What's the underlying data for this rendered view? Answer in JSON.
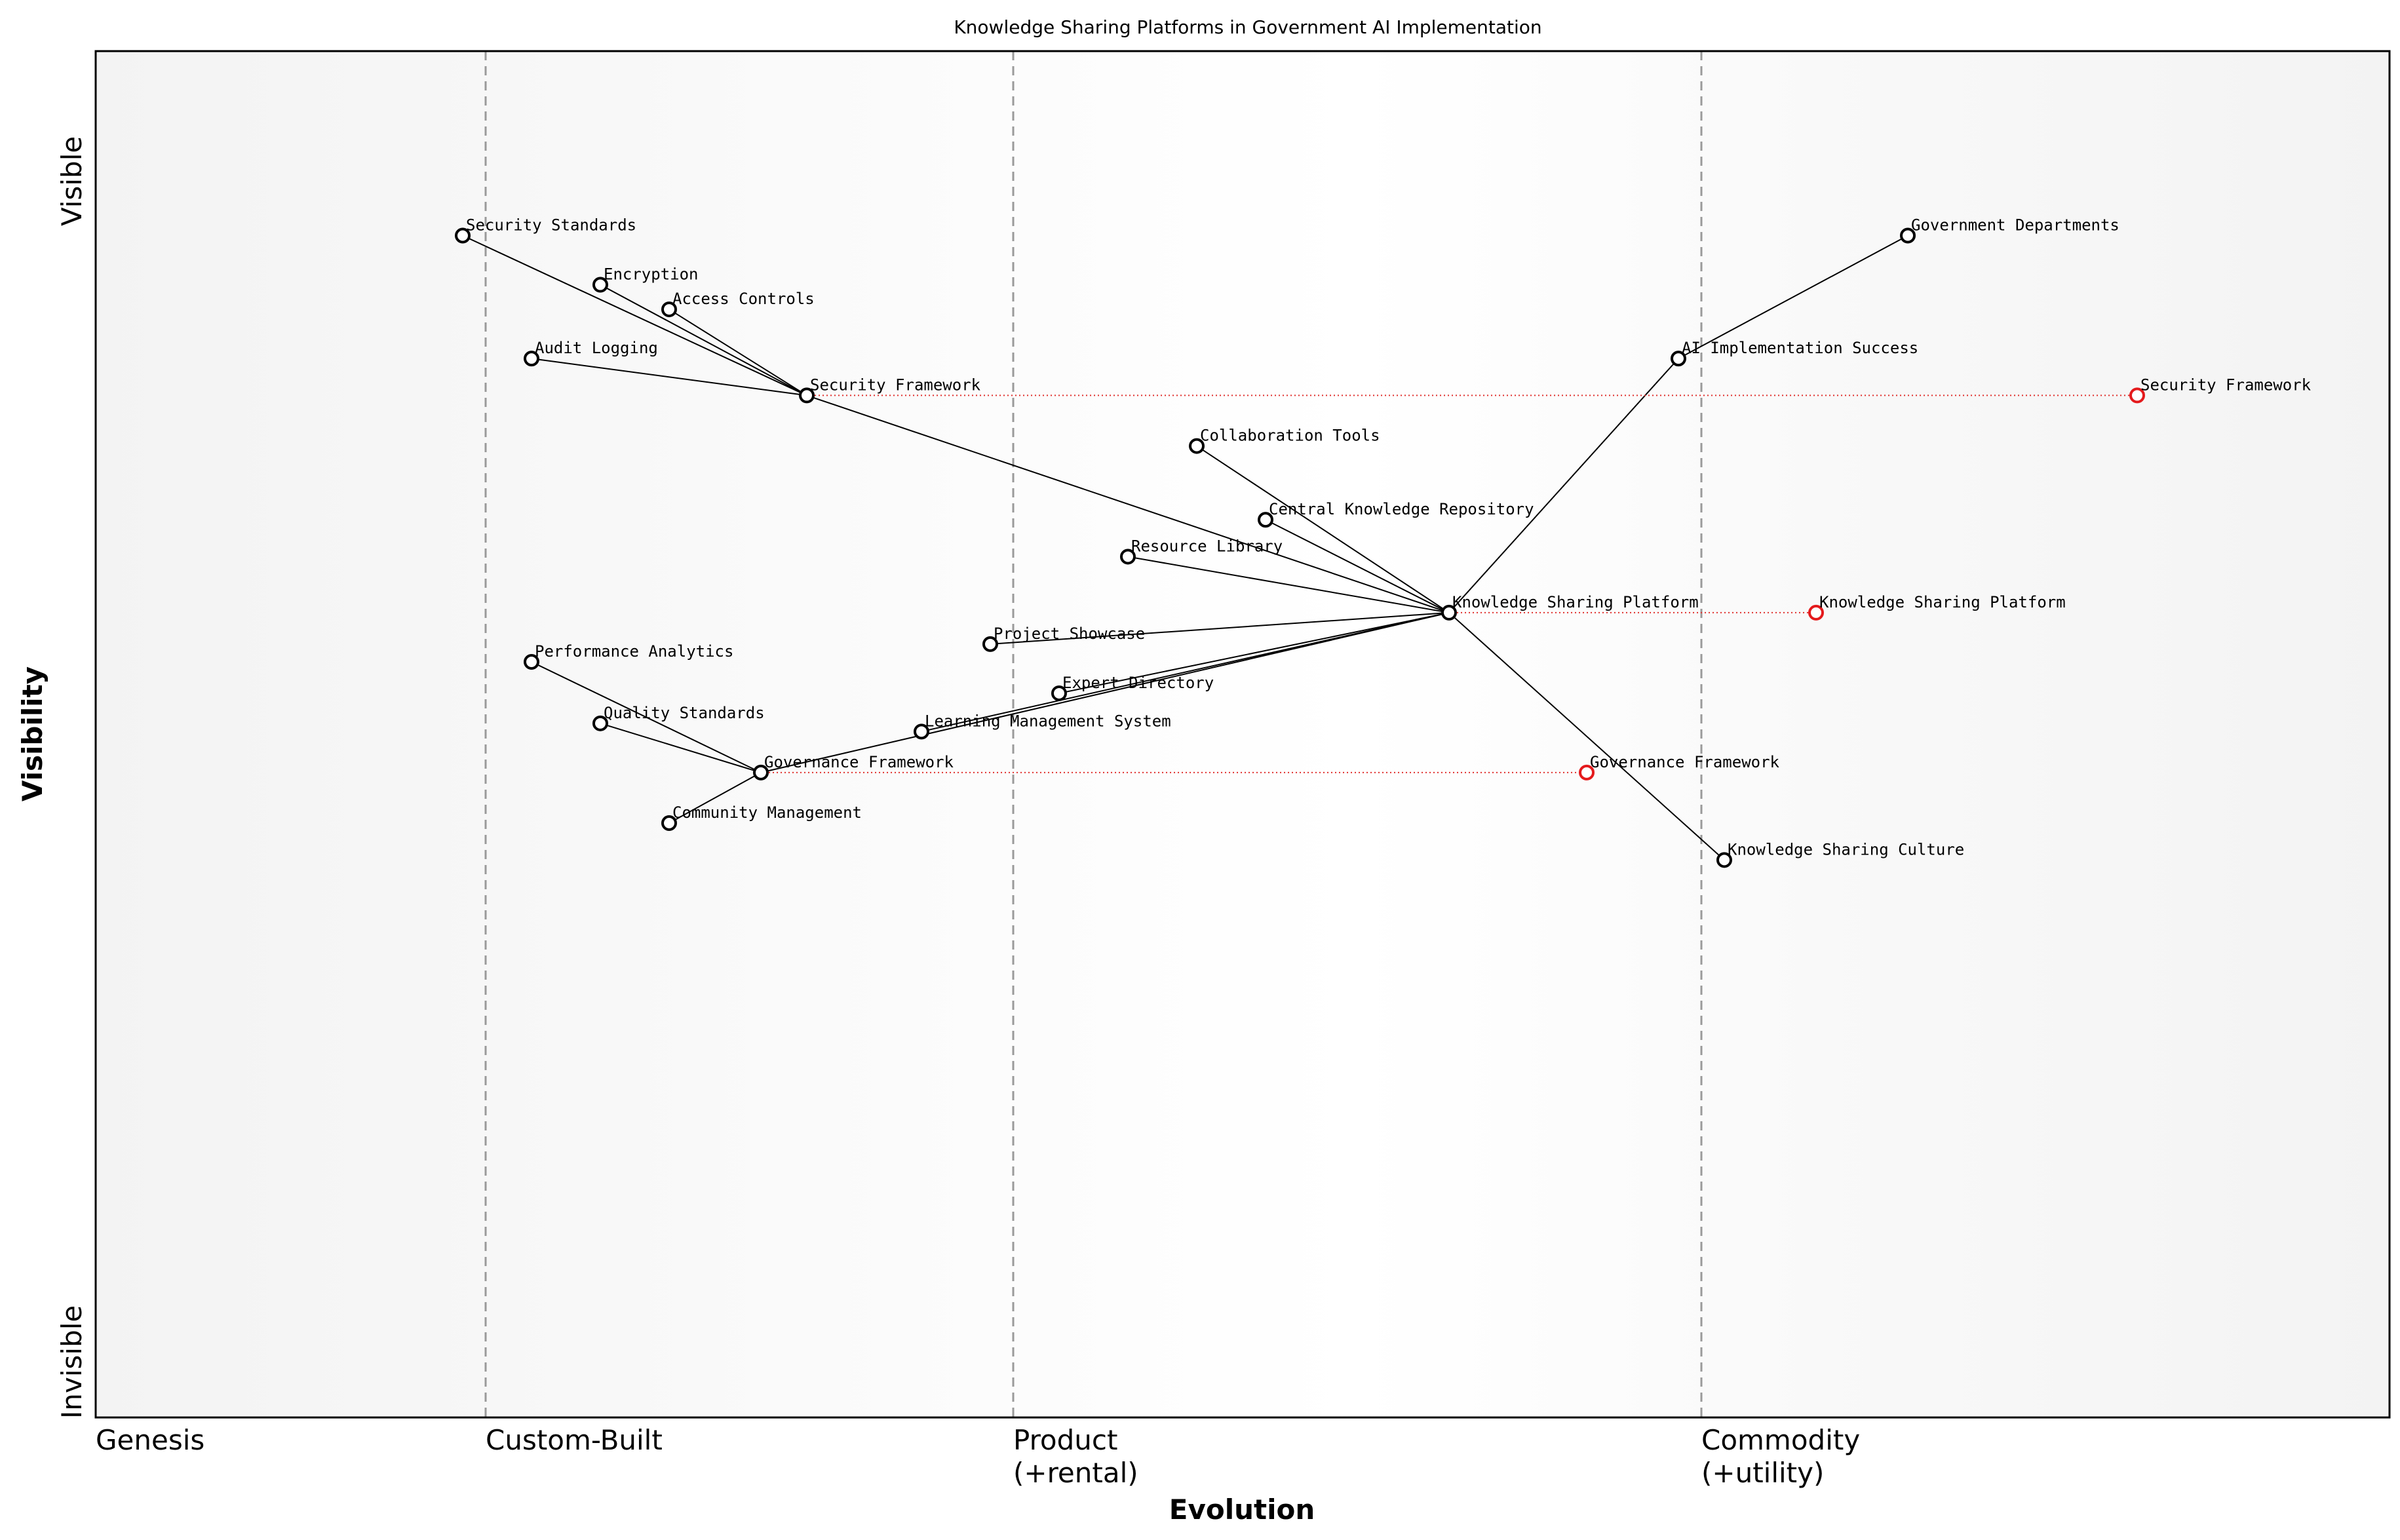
{
  "title": "Knowledge Sharing Platforms in Government AI Implementation",
  "axes": {
    "x_title": "Evolution",
    "y_title": "Visibility",
    "y_top": "Visible",
    "y_bottom": "Invisible",
    "stages": [
      {
        "id": "genesis",
        "line1": "Genesis",
        "line2": "",
        "start": 0.0
      },
      {
        "id": "custom",
        "line1": "Custom-Built",
        "line2": "",
        "start": 0.17
      },
      {
        "id": "product",
        "line1": "Product",
        "line2": "(+rental)",
        "start": 0.4
      },
      {
        "id": "commodity",
        "line1": "Commodity",
        "line2": "(+utility)",
        "start": 0.7
      }
    ]
  },
  "components": [
    {
      "id": "security-standards",
      "name": "Security Standards",
      "evolution": 0.16,
      "visibility": 0.865
    },
    {
      "id": "encryption",
      "name": "Encryption",
      "evolution": 0.22,
      "visibility": 0.829
    },
    {
      "id": "access-controls",
      "name": "Access Controls",
      "evolution": 0.25,
      "visibility": 0.811
    },
    {
      "id": "audit-logging",
      "name": "Audit Logging",
      "evolution": 0.19,
      "visibility": 0.775
    },
    {
      "id": "security-framework",
      "name": "Security Framework",
      "evolution": 0.31,
      "visibility": 0.748
    },
    {
      "id": "government-departments",
      "name": "Government Departments",
      "evolution": 0.79,
      "visibility": 0.865
    },
    {
      "id": "ai-implementation-success",
      "name": "AI Implementation Success",
      "evolution": 0.69,
      "visibility": 0.775
    },
    {
      "id": "collaboration-tools",
      "name": "Collaboration Tools",
      "evolution": 0.48,
      "visibility": 0.711
    },
    {
      "id": "central-knowledge-repository",
      "name": "Central Knowledge Repository",
      "evolution": 0.51,
      "visibility": 0.657
    },
    {
      "id": "resource-library",
      "name": "Resource Library",
      "evolution": 0.45,
      "visibility": 0.63
    },
    {
      "id": "knowledge-sharing-platform",
      "name": "Knowledge Sharing Platform",
      "evolution": 0.59,
      "visibility": 0.589
    },
    {
      "id": "project-showcase",
      "name": "Project Showcase",
      "evolution": 0.39,
      "visibility": 0.566
    },
    {
      "id": "performance-analytics",
      "name": "Performance Analytics",
      "evolution": 0.19,
      "visibility": 0.553
    },
    {
      "id": "expert-directory",
      "name": "Expert Directory",
      "evolution": 0.42,
      "visibility": 0.53
    },
    {
      "id": "quality-standards",
      "name": "Quality Standards",
      "evolution": 0.22,
      "visibility": 0.508
    },
    {
      "id": "learning-management-system",
      "name": "Learning Management System",
      "evolution": 0.36,
      "visibility": 0.502
    },
    {
      "id": "governance-framework",
      "name": "Governance Framework",
      "evolution": 0.29,
      "visibility": 0.472
    },
    {
      "id": "community-management",
      "name": "Community Management",
      "evolution": 0.25,
      "visibility": 0.435
    },
    {
      "id": "knowledge-sharing-culture",
      "name": "Knowledge Sharing Culture",
      "evolution": 0.71,
      "visibility": 0.408
    }
  ],
  "evolved": [
    {
      "id": "security-framework-evolved",
      "name": "Security Framework",
      "evolution": 0.89,
      "visibility": 0.748,
      "from": "security-framework"
    },
    {
      "id": "knowledge-sharing-platform-evolved",
      "name": "Knowledge Sharing Platform",
      "evolution": 0.75,
      "visibility": 0.589,
      "from": "knowledge-sharing-platform"
    },
    {
      "id": "governance-framework-evolved",
      "name": "Governance Framework",
      "evolution": 0.65,
      "visibility": 0.472,
      "from": "governance-framework"
    }
  ],
  "links": [
    [
      "government-departments",
      "ai-implementation-success"
    ],
    [
      "ai-implementation-success",
      "knowledge-sharing-platform"
    ],
    [
      "knowledge-sharing-platform",
      "knowledge-sharing-culture"
    ],
    [
      "knowledge-sharing-platform",
      "collaboration-tools"
    ],
    [
      "knowledge-sharing-platform",
      "central-knowledge-repository"
    ],
    [
      "knowledge-sharing-platform",
      "resource-library"
    ],
    [
      "knowledge-sharing-platform",
      "project-showcase"
    ],
    [
      "knowledge-sharing-platform",
      "expert-directory"
    ],
    [
      "knowledge-sharing-platform",
      "learning-management-system"
    ],
    [
      "knowledge-sharing-platform",
      "security-framework"
    ],
    [
      "knowledge-sharing-platform",
      "governance-framework"
    ],
    [
      "security-framework",
      "security-standards"
    ],
    [
      "security-framework",
      "encryption"
    ],
    [
      "security-framework",
      "access-controls"
    ],
    [
      "security-framework",
      "audit-logging"
    ],
    [
      "governance-framework",
      "performance-analytics"
    ],
    [
      "governance-framework",
      "quality-standards"
    ],
    [
      "governance-framework",
      "community-management"
    ]
  ]
}
